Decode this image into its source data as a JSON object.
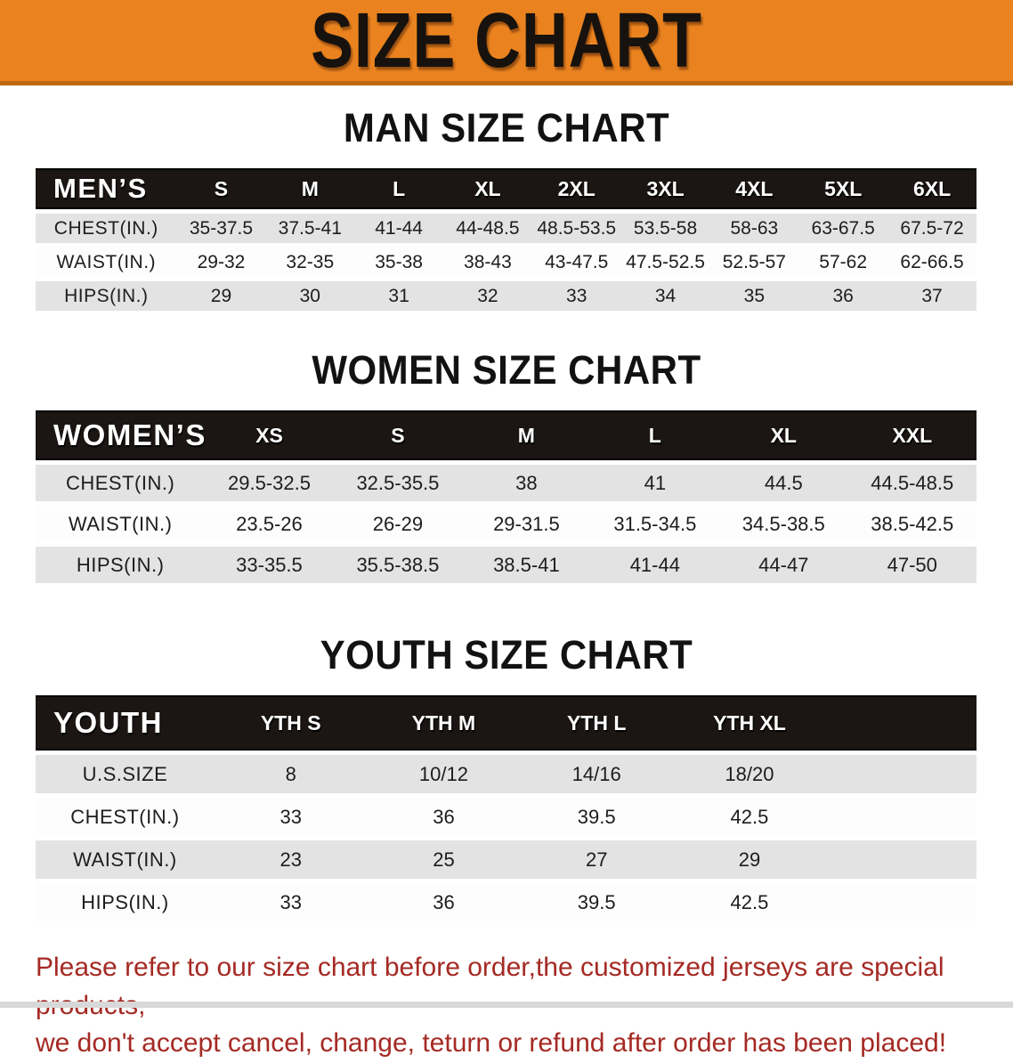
{
  "banner": {
    "title": "SIZE CHART",
    "bg_color": "#EA831F",
    "text_color": "#17120e"
  },
  "sections": [
    {
      "heading": "MAN SIZE CHART",
      "table": {
        "header_label": "MEN’S",
        "columns": [
          "S",
          "M",
          "L",
          "XL",
          "2XL",
          "3XL",
          "4XL",
          "5XL",
          "6XL"
        ],
        "rows": [
          {
            "label": "CHEST(IN.)",
            "values": [
              "35-37.5",
              "37.5-41",
              "41-44",
              "44-48.5",
              "48.5-53.5",
              "53.5-58",
              "58-63",
              "63-67.5",
              "67.5-72"
            ]
          },
          {
            "label": "WAIST(IN.)",
            "values": [
              "29-32",
              "32-35",
              "35-38",
              "38-43",
              "43-47.5",
              "47.5-52.5",
              "52.5-57",
              "57-62",
              "62-66.5"
            ]
          },
          {
            "label": "HIPS(IN.)",
            "values": [
              "29",
              "30",
              "31",
              "32",
              "33",
              "34",
              "35",
              "36",
              "37"
            ]
          }
        ]
      }
    },
    {
      "heading": "WOMEN SIZE CHART",
      "table": {
        "header_label": "WOMEN’S",
        "columns": [
          "XS",
          "S",
          "M",
          "L",
          "XL",
          "XXL"
        ],
        "rows": [
          {
            "label": "CHEST(IN.)",
            "values": [
              "29.5-32.5",
              "32.5-35.5",
              "38",
              "41",
              "44.5",
              "44.5-48.5"
            ]
          },
          {
            "label": "WAIST(IN.)",
            "values": [
              "23.5-26",
              "26-29",
              "29-31.5",
              "31.5-34.5",
              "34.5-38.5",
              "38.5-42.5"
            ]
          },
          {
            "label": "HIPS(IN.)",
            "values": [
              "33-35.5",
              "35.5-38.5",
              "38.5-41",
              "41-44",
              "44-47",
              "47-50"
            ]
          }
        ]
      }
    },
    {
      "heading": "YOUTH SIZE CHART",
      "table": {
        "header_label": "YOUTH",
        "columns": [
          "YTH S",
          "YTH M",
          "YTH L",
          "YTH XL"
        ],
        "rows": [
          {
            "label": "U.S.SIZE",
            "values": [
              "8",
              "10/12",
              "14/16",
              "18/20"
            ]
          },
          {
            "label": "CHEST(IN.)",
            "values": [
              "33",
              "36",
              "39.5",
              "42.5"
            ]
          },
          {
            "label": "WAIST(IN.)",
            "values": [
              "23",
              "25",
              "27",
              "29"
            ]
          },
          {
            "label": "HIPS(IN.)",
            "values": [
              "33",
              "36",
              "39.5",
              "42.5"
            ]
          }
        ]
      }
    }
  ],
  "footer_note": {
    "line1": "Please refer to our size chart before order,the customized jerseys are special products,",
    "line2": "we don't accept cancel, change, teturn or refund after order has been placed!",
    "color": "#A52A24"
  },
  "table_colors": {
    "header_bg": "#1B1614",
    "header_text": "#ffffff",
    "row_alt_bg": "#E3E3E3",
    "row_bg": "#FDFDFD"
  }
}
